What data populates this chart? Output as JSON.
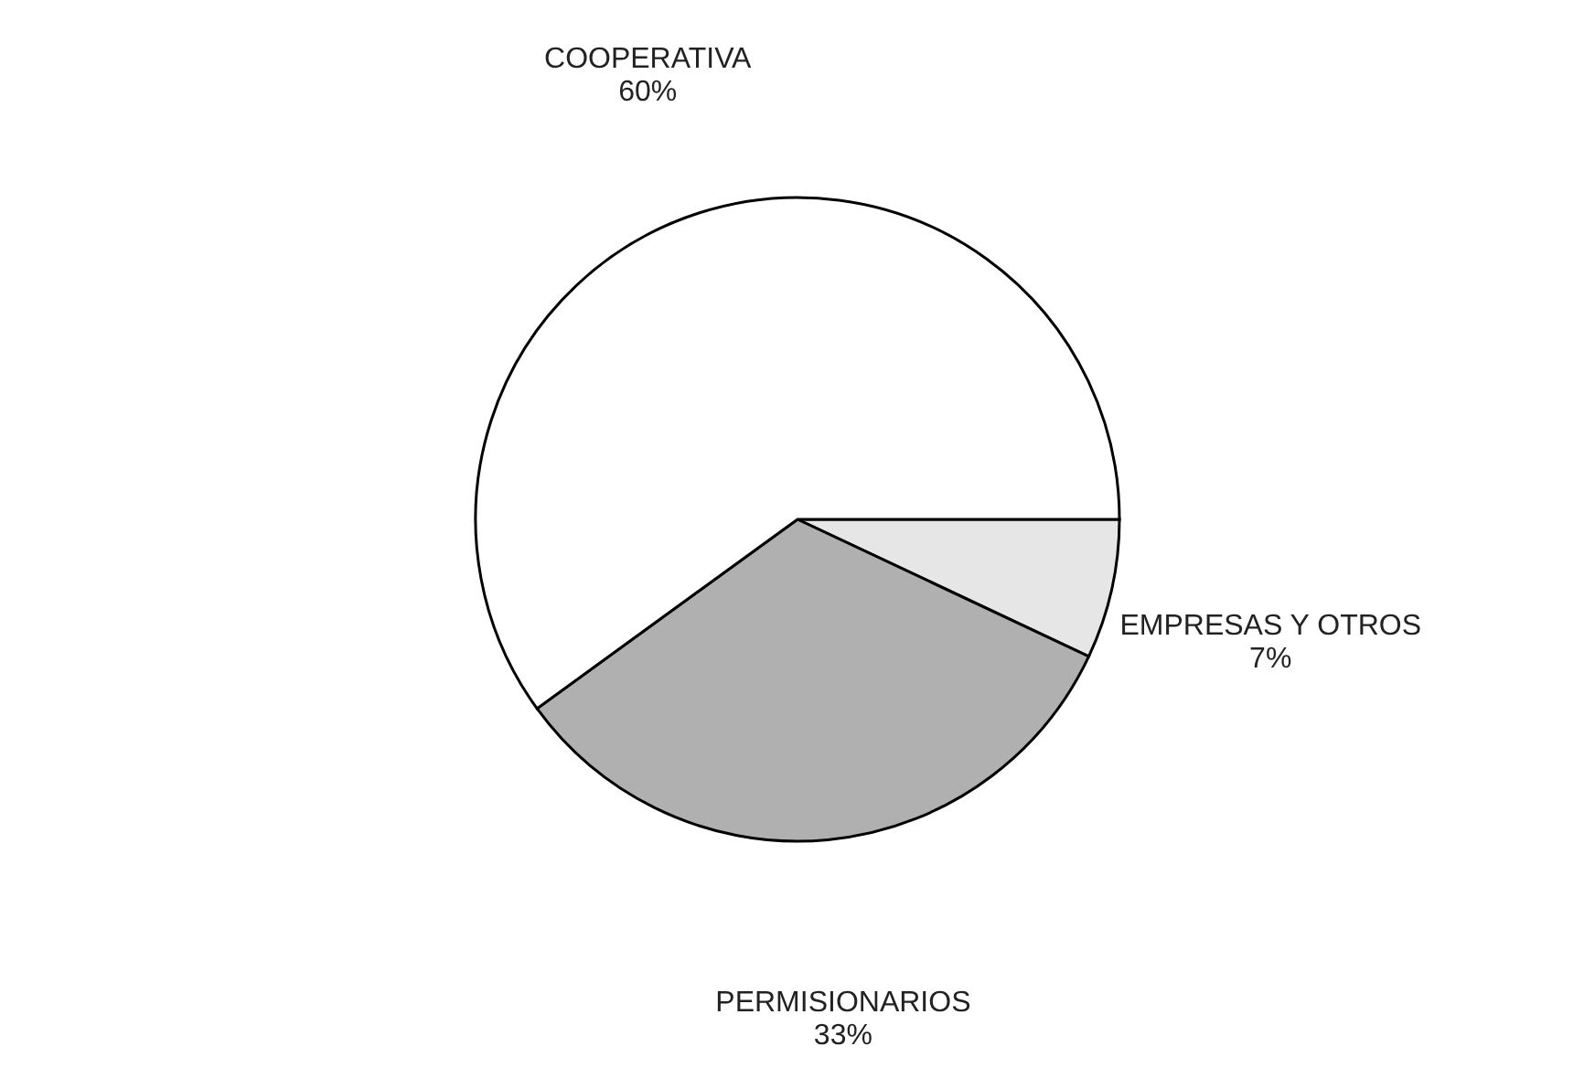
{
  "chart_data": {
    "type": "pie",
    "categories": [
      "EMPRESAS Y OTROS",
      "PERMISIONARIOS",
      "COOPERATIVA"
    ],
    "values": [
      7,
      33,
      60
    ],
    "colors": [
      "#e6e6e6",
      "#b0b0b0",
      "#ffffff"
    ],
    "value_labels": [
      "7%",
      "33%",
      "60%"
    ]
  }
}
